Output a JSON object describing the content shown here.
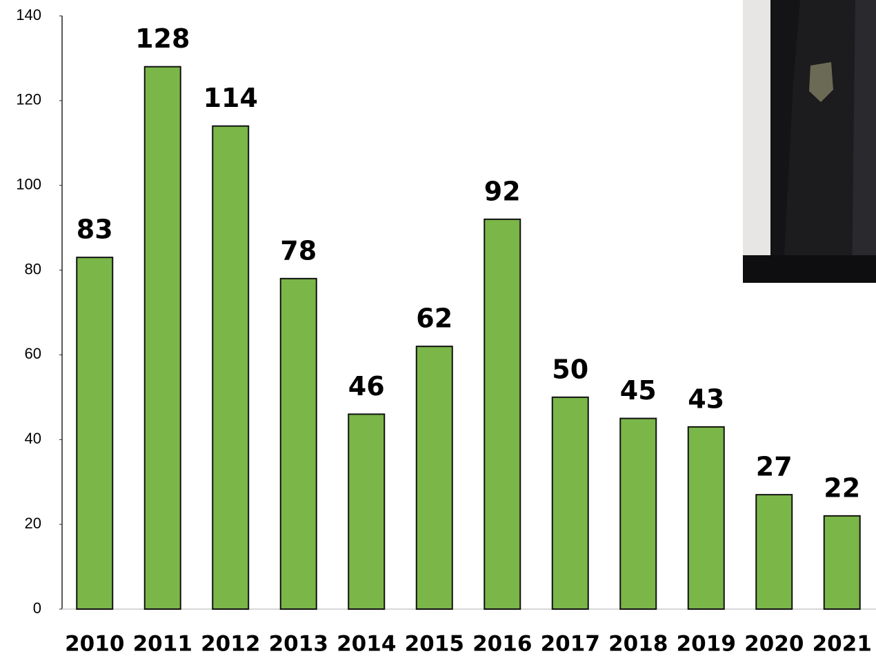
{
  "chart_data": {
    "type": "bar",
    "categories": [
      "2010",
      "2011",
      "2012",
      "2013",
      "2014",
      "2015",
      "2016",
      "2017",
      "2018",
      "2019",
      "2020",
      "2021"
    ],
    "values": [
      83,
      128,
      114,
      78,
      46,
      62,
      92,
      50,
      45,
      43,
      27,
      22
    ],
    "color": "#7ab648",
    "ylim": [
      0,
      140
    ],
    "yticks": [
      0,
      20,
      40,
      60,
      80,
      100,
      120,
      140
    ]
  }
}
